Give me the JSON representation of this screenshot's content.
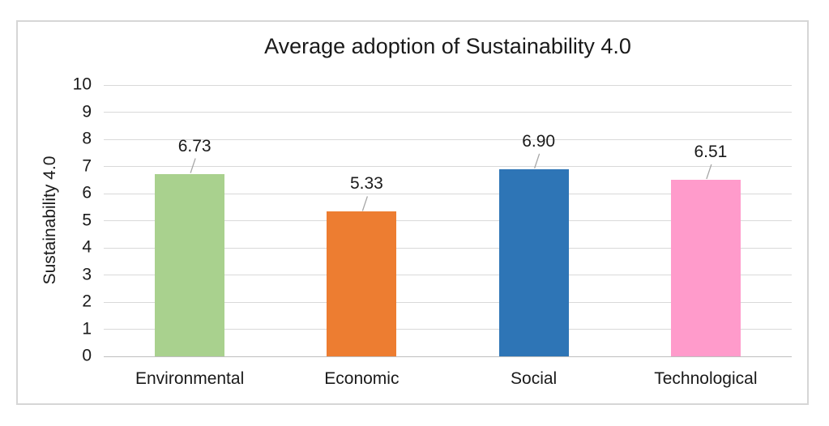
{
  "chart_data": {
    "type": "bar",
    "title": "Average adoption of Sustainability 4.0",
    "categories": [
      "Environmental",
      "Economic",
      "Social",
      "Technological"
    ],
    "values": [
      6.73,
      5.33,
      6.9,
      6.51
    ],
    "value_labels": [
      "6.73",
      "5.33",
      "6.90",
      "6.51"
    ],
    "bar_colors": [
      "#a9d18e",
      "#ed7d31",
      "#2e75b6",
      "#ff9bcb"
    ],
    "xlabel": "",
    "ylabel": "Sustainability 4.0",
    "ylim": [
      0,
      10
    ],
    "ytick_step": 1,
    "ytick_labels": [
      "0",
      "1",
      "2",
      "3",
      "4",
      "5",
      "6",
      "7",
      "8",
      "9",
      "10"
    ],
    "grid": "horizontal",
    "grid_color": "#d9d9d9",
    "axis_line_color": "#bfbfbf",
    "leader_line_color": "#a6a6a6",
    "frame_border_color": "#d6d6d6",
    "legend": "none",
    "data_labels_visible": true,
    "data_labels_have_leader_lines": true
  }
}
